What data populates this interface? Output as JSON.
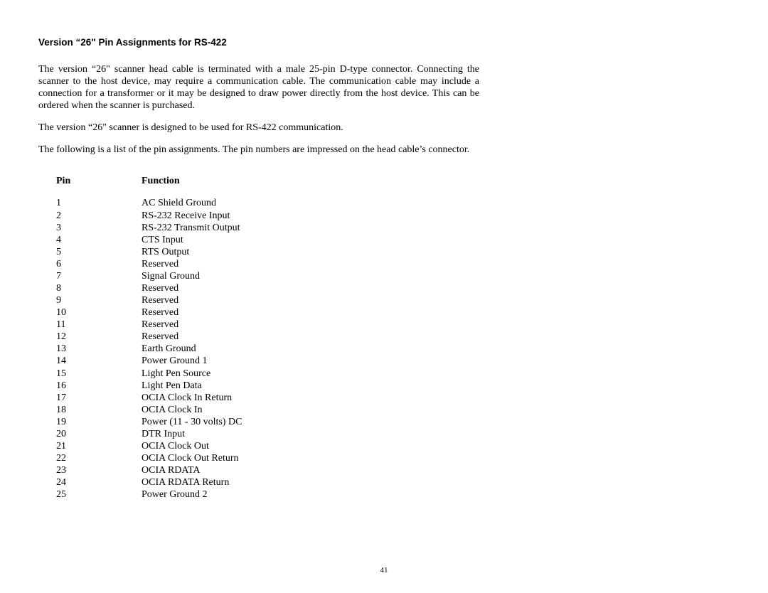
{
  "title": "Version “26\" Pin Assignments for RS-422",
  "paragraphs": [
    "The version “26\" scanner head cable is terminated with a male 25-pin D-type connector. Connecting  the scanner to the host device, may require a communication cable. The communication cable may include a connection for a transformer or it may be designed to draw power directly from the host device. This can be ordered when the scanner is purchased.",
    "The version “26\" scanner is designed to be used for RS-422 communication.",
    "The following is a list of the pin assignments. The pin numbers are impressed on the head cable’s connector."
  ],
  "headers": {
    "pin": "Pin",
    "func": "Function"
  },
  "pins": [
    {
      "n": "1",
      "f": "AC Shield Ground"
    },
    {
      "n": "2",
      "f": "RS-232 Receive Input"
    },
    {
      "n": "3",
      "f": "RS-232 Transmit Output"
    },
    {
      "n": "4",
      "f": "CTS Input"
    },
    {
      "n": "5",
      "f": "RTS Output"
    },
    {
      "n": "6",
      "f": "Reserved"
    },
    {
      "n": "7",
      "f": "Signal Ground"
    },
    {
      "n": "8",
      "f": "Reserved"
    },
    {
      "n": "9",
      "f": "Reserved"
    },
    {
      "n": "10",
      "f": "Reserved"
    },
    {
      "n": "11",
      "f": "Reserved"
    },
    {
      "n": "12",
      "f": "Reserved"
    },
    {
      "n": "13",
      "f": "Earth Ground"
    },
    {
      "n": "14",
      "f": "Power Ground 1"
    },
    {
      "n": "15",
      "f": "Light Pen Source"
    },
    {
      "n": "16",
      "f": "Light Pen Data"
    },
    {
      "n": "17",
      "f": "OCIA Clock In Return"
    },
    {
      "n": "18",
      "f": "OCIA Clock In"
    },
    {
      "n": "19",
      "f": "Power (11 - 30 volts) DC"
    },
    {
      "n": "20",
      "f": "DTR Input"
    },
    {
      "n": "21",
      "f": "OCIA Clock Out"
    },
    {
      "n": "22",
      "f": "OCIA Clock Out Return"
    },
    {
      "n": "23",
      "f": "OCIA RDATA"
    },
    {
      "n": "24",
      "f": "OCIA RDATA Return"
    },
    {
      "n": "25",
      "f": "Power Ground 2"
    }
  ],
  "page_number": "41"
}
